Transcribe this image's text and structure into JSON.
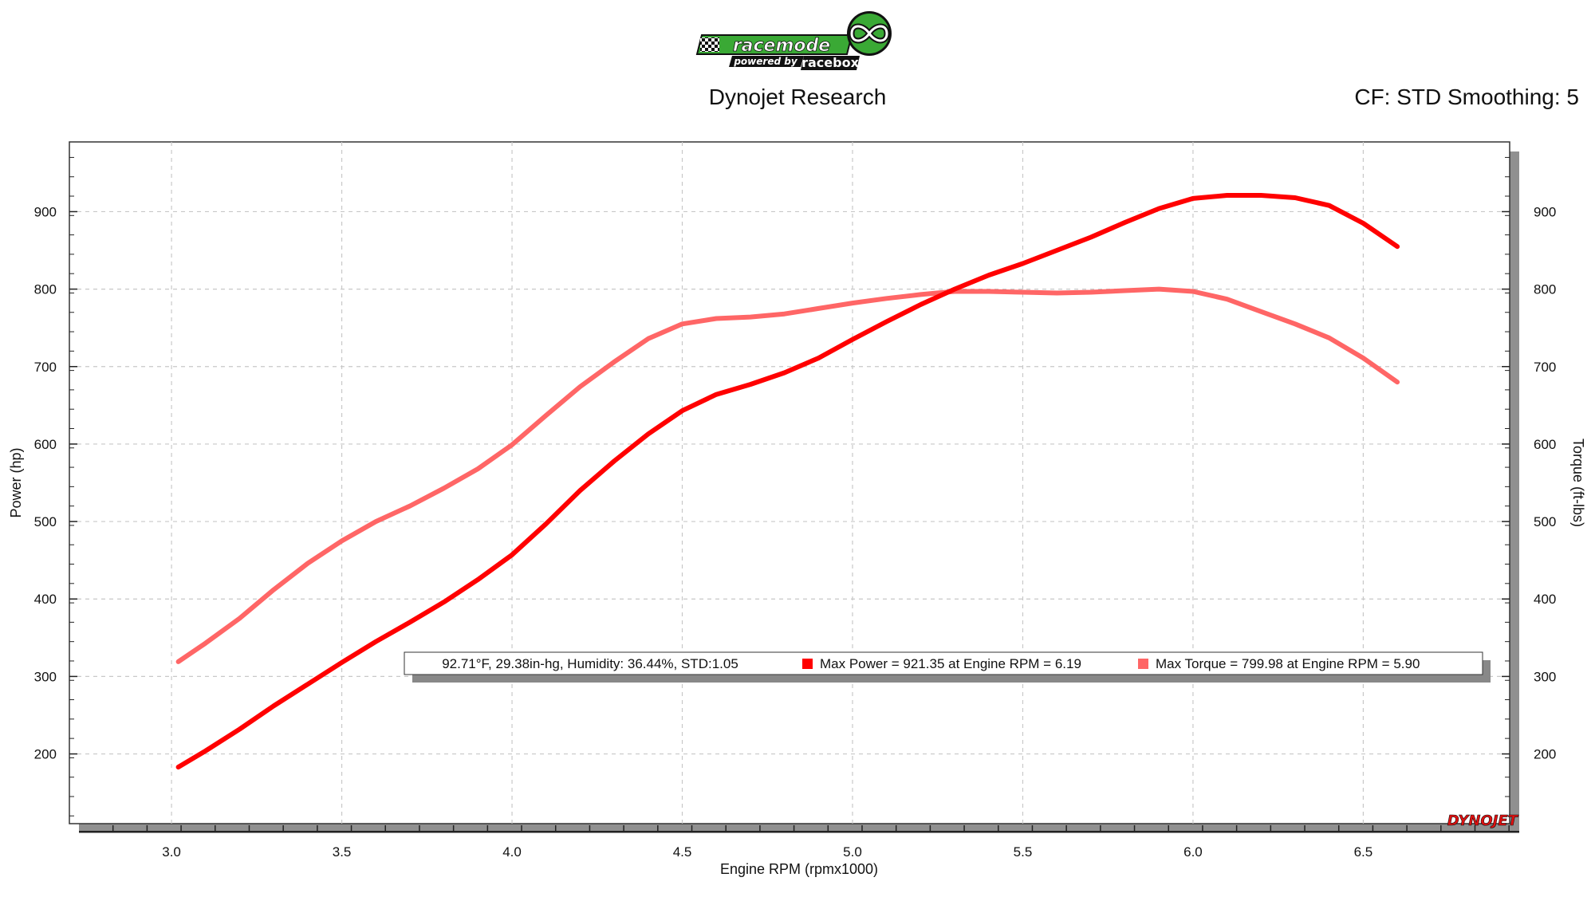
{
  "logo": {
    "brand_text": "racemode",
    "sub_text": "powered by",
    "partner_text": "racebox",
    "accent": "#3aa935"
  },
  "header": {
    "title": "Dynojet Research",
    "settings": "CF: STD Smoothing: 5"
  },
  "watermark": "DYNOJET",
  "info_box": {
    "conditions": "92.71°F, 29.38in-hg, Humidity: 36.44%, STD:1.05",
    "power_label": "Max Power = 921.35 at Engine RPM = 6.19",
    "torque_label": "Max Torque = 799.98 at Engine RPM = 5.90"
  },
  "chart_data": {
    "type": "line",
    "xlabel": "Engine RPM (rpmx1000)",
    "ylabel": "Power (hp)",
    "y2label": "Torque (ft-lbs)",
    "xlim": [
      2.7,
      6.93
    ],
    "ylim": [
      110,
      990
    ],
    "y2lim": [
      110,
      990
    ],
    "x_ticks": [
      "3.0",
      "3.5",
      "4.0",
      "4.5",
      "5.0",
      "5.5",
      "6.0",
      "6.5"
    ],
    "y_ticks": [
      "200",
      "300",
      "400",
      "500",
      "600",
      "700",
      "800",
      "900"
    ],
    "grid": true,
    "series": [
      {
        "name": "Power",
        "axis": "left",
        "color": "#ff0000",
        "x": [
          3.02,
          3.1,
          3.2,
          3.3,
          3.4,
          3.5,
          3.6,
          3.7,
          3.8,
          3.9,
          4.0,
          4.1,
          4.2,
          4.3,
          4.4,
          4.5,
          4.6,
          4.7,
          4.8,
          4.9,
          5.0,
          5.1,
          5.2,
          5.3,
          5.4,
          5.5,
          5.6,
          5.7,
          5.8,
          5.9,
          6.0,
          6.1,
          6.2,
          6.3,
          6.4,
          6.5,
          6.6
        ],
        "y": [
          183,
          204,
          232,
          262,
          290,
          318,
          345,
          370,
          396,
          425,
          457,
          497,
          540,
          578,
          613,
          643,
          664,
          677,
          692,
          711,
          735,
          758,
          780,
          800,
          818,
          833,
          850,
          867,
          886,
          904,
          917,
          921,
          921,
          918,
          908,
          885,
          855
        ]
      },
      {
        "name": "Torque",
        "axis": "right",
        "color": "#ff6666",
        "x": [
          3.02,
          3.1,
          3.2,
          3.3,
          3.4,
          3.5,
          3.6,
          3.7,
          3.8,
          3.9,
          4.0,
          4.1,
          4.2,
          4.3,
          4.4,
          4.5,
          4.6,
          4.7,
          4.8,
          4.9,
          5.0,
          5.1,
          5.2,
          5.3,
          5.4,
          5.5,
          5.6,
          5.7,
          5.8,
          5.9,
          6.0,
          6.1,
          6.2,
          6.3,
          6.4,
          6.5,
          6.6
        ],
        "y": [
          319,
          343,
          375,
          412,
          446,
          475,
          500,
          520,
          543,
          568,
          599,
          637,
          674,
          706,
          736,
          755,
          762,
          764,
          768,
          775,
          782,
          788,
          793,
          797,
          797,
          796,
          795,
          796,
          798,
          800,
          797,
          787,
          771,
          755,
          737,
          711,
          680
        ]
      }
    ]
  }
}
